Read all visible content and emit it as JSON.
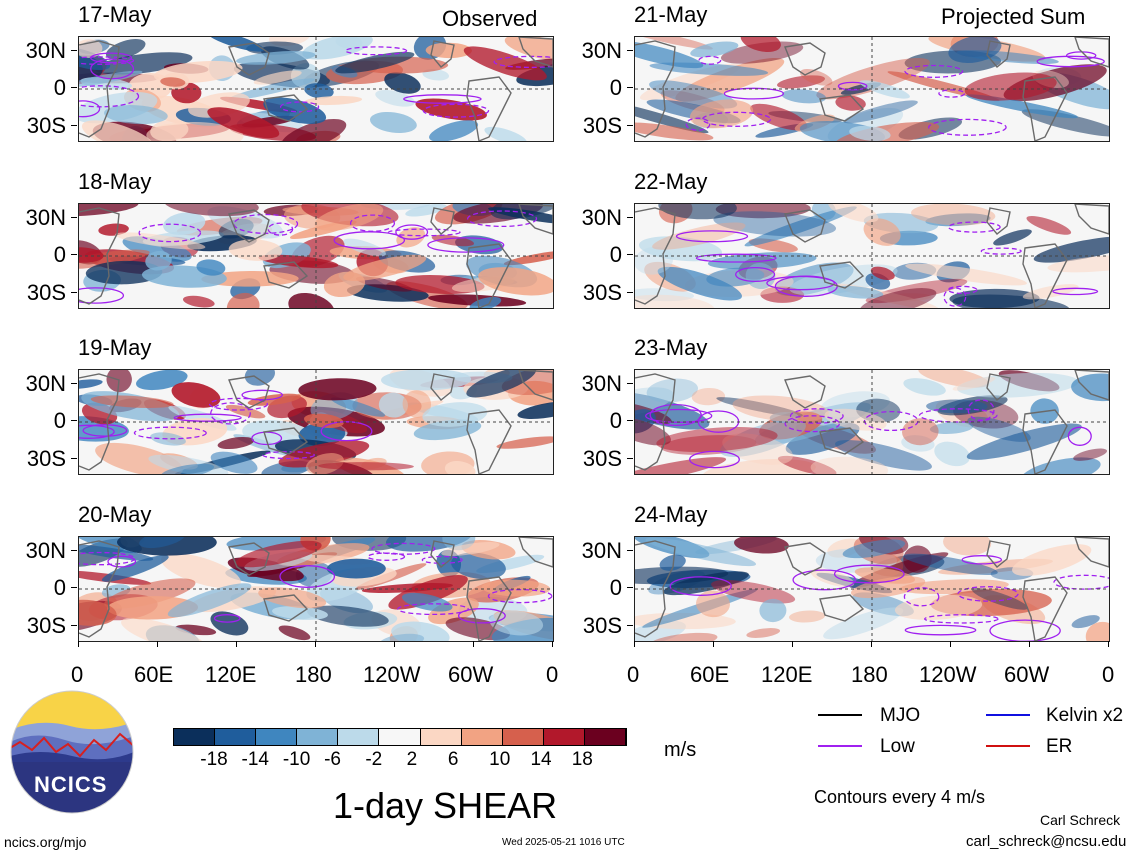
{
  "columns": {
    "left_label": "Observed",
    "right_label": "Projected Sum"
  },
  "panels": [
    {
      "date": "17-May",
      "col": "observed"
    },
    {
      "date": "18-May",
      "col": "observed"
    },
    {
      "date": "19-May",
      "col": "observed"
    },
    {
      "date": "20-May",
      "col": "observed"
    },
    {
      "date": "21-May",
      "col": "projected"
    },
    {
      "date": "22-May",
      "col": "projected"
    },
    {
      "date": "23-May",
      "col": "projected"
    },
    {
      "date": "24-May",
      "col": "projected"
    }
  ],
  "axes": {
    "lat_labels": [
      "30N",
      "0",
      "30S"
    ],
    "lon_labels": [
      "0",
      "60E",
      "120E",
      "180",
      "120W",
      "60W",
      "0"
    ]
  },
  "colorbar": {
    "tick_labels": [
      "-18",
      "-14",
      "-10",
      "-6",
      "-2",
      "2",
      "6",
      "10",
      "14",
      "18"
    ],
    "units": "m/s",
    "colors": [
      "#0b2f5b",
      "#1f5d9c",
      "#3f86bf",
      "#7fb3d6",
      "#bcdaea",
      "#f7f7f7",
      "#fbd7c4",
      "#f2a383",
      "#d6604d",
      "#b2182b",
      "#6b001f"
    ]
  },
  "title": "1-day SHEAR",
  "legend": {
    "items": [
      {
        "label": "MJO",
        "color": "#000000"
      },
      {
        "label": "Kelvin x2",
        "color": "#1010e0"
      },
      {
        "label": "Low",
        "color": "#a020f0"
      },
      {
        "label": "ER",
        "color": "#d01010"
      }
    ],
    "contour_note": "Contours every 4 m/s"
  },
  "footer": {
    "site": "ncics.org/mjo",
    "timestamp": "Wed 2025-05-21 1016 UTC",
    "author": "Carl Schreck",
    "email": "carl_schreck@ncsu.edu"
  },
  "logo": {
    "text": "NCICS"
  }
}
